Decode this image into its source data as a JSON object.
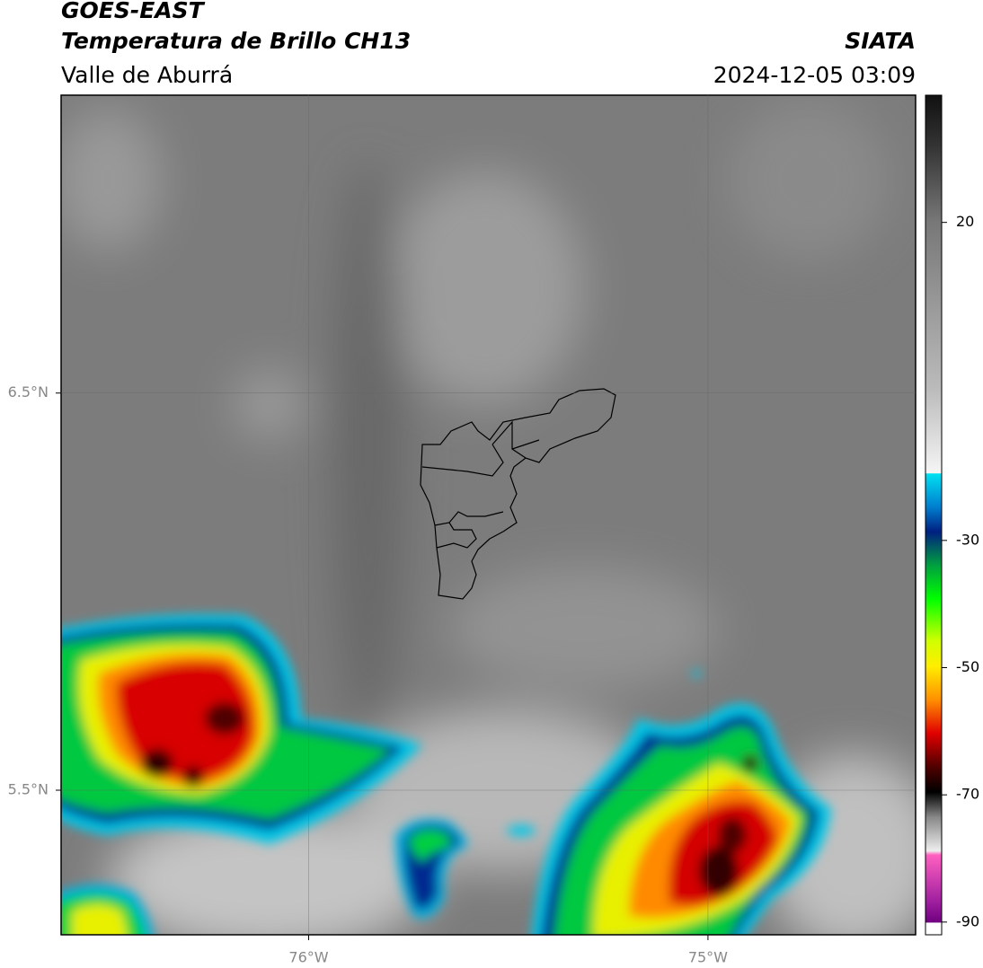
{
  "header": {
    "title": "GOES-EAST",
    "subtitle": "Temperatura de Brillo CH13",
    "source": "SIATA",
    "region": "Valle de Aburrá",
    "timestamp": "2024-12-05 03:09"
  },
  "map": {
    "xlim": [
      -76.62,
      -74.48
    ],
    "ylim": [
      5.136,
      7.25
    ],
    "xticks": [
      {
        "value": -76,
        "label": "76°W"
      },
      {
        "value": -75,
        "label": "75°W"
      }
    ],
    "yticks": [
      {
        "value": 6.5,
        "label": "6.5°N"
      },
      {
        "value": 5.5,
        "label": "5.5°N"
      }
    ],
    "grid": true
  },
  "colorbar": {
    "limits": [
      -92,
      40
    ],
    "ticks": [
      20,
      -30,
      -50,
      -70,
      -90
    ]
  }
}
